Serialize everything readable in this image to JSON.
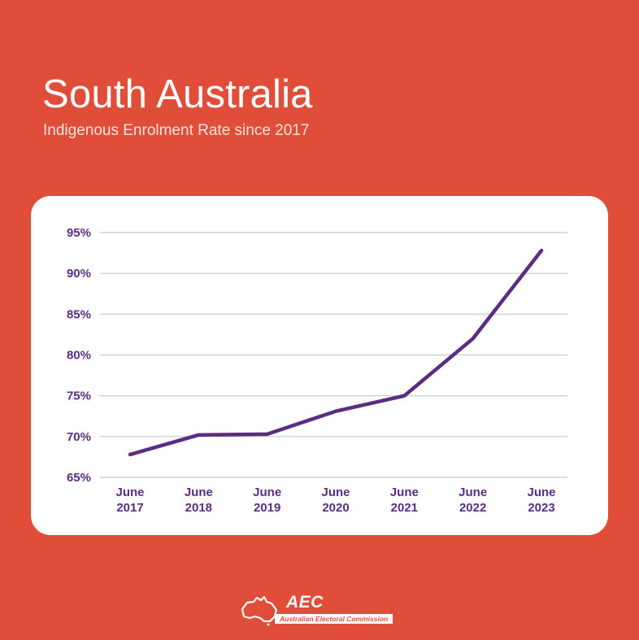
{
  "header": {
    "title": "South Australia",
    "subtitle": "Indigenous Enrolment Rate since 2017"
  },
  "colors": {
    "background": "#e04e39",
    "line": "#5a2d82",
    "grid": "#c8c8c8",
    "card": "#ffffff"
  },
  "logo": {
    "acronym": "AEC",
    "name": "Australian Electoral Commission",
    "icon": "australia-map-icon"
  },
  "chart_data": {
    "type": "line",
    "title": "",
    "xlabel": "",
    "ylabel": "",
    "ylim": [
      65,
      95
    ],
    "yticks": [
      65,
      70,
      75,
      80,
      85,
      90,
      95
    ],
    "ytick_labels": [
      "65%",
      "70%",
      "75%",
      "80%",
      "85%",
      "90%",
      "95%"
    ],
    "categories": [
      [
        "June",
        "2017"
      ],
      [
        "June",
        "2018"
      ],
      [
        "June",
        "2019"
      ],
      [
        "June",
        "2020"
      ],
      [
        "June",
        "2021"
      ],
      [
        "June",
        "2022"
      ],
      [
        "June",
        "2023"
      ]
    ],
    "series": [
      {
        "values": [
          67.8,
          70.2,
          70.3,
          73.1,
          75.0,
          82.0,
          92.8
        ]
      }
    ],
    "grid": true,
    "legend": "none"
  }
}
